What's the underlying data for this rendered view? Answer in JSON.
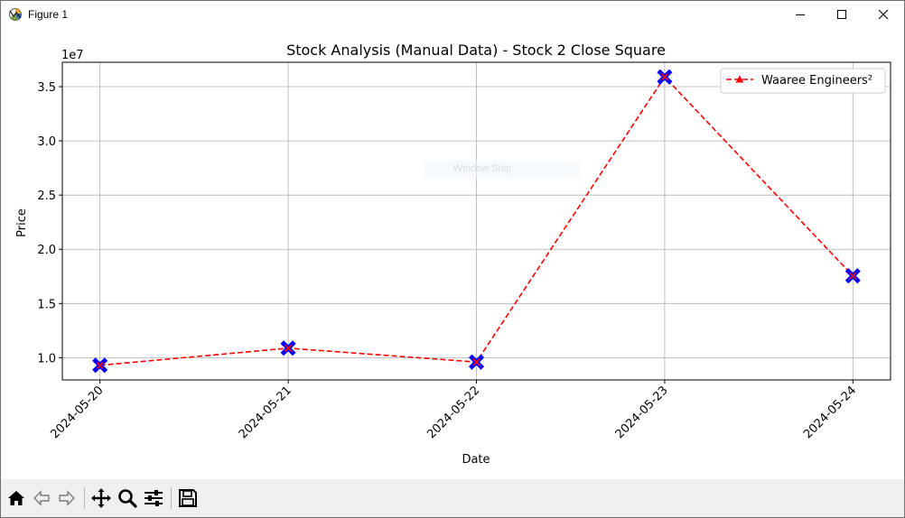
{
  "window": {
    "title": "Figure 1",
    "controls": [
      "minimize-icon",
      "maximize-icon",
      "close-icon"
    ]
  },
  "ghost_overlay": {
    "label": "Window Snip"
  },
  "toolbar": {
    "buttons": [
      "home-icon",
      "back-icon",
      "forward-icon",
      "pan-icon",
      "zoom-icon",
      "configure-subplots-icon",
      "save-icon"
    ]
  },
  "chart_data": {
    "type": "line",
    "title": "Stock Analysis (Manual Data) - Stock 2 Close Square",
    "xlabel": "Date",
    "ylabel": "Price",
    "y_offset_label": "1e7",
    "categories": [
      "2024-05-20",
      "2024-05-21",
      "2024-05-22",
      "2024-05-23",
      "2024-05-24"
    ],
    "series": [
      {
        "name": "Waaree Engineers²",
        "values": [
          9300000,
          10880000,
          9600000,
          35900000,
          17550000
        ],
        "line_color": "#ff0000",
        "line_style": "dashed",
        "marker": "X",
        "marker_face_color": "#0000ff",
        "marker_edge_color": "#ff0000"
      }
    ],
    "yticks": [
      10000000,
      15000000,
      20000000,
      25000000,
      30000000,
      35000000
    ],
    "ytick_labels": [
      "1.0",
      "1.5",
      "2.0",
      "2.5",
      "3.0",
      "3.5"
    ],
    "ylim": [
      7950000,
      37250000
    ],
    "x_padding": 0.2,
    "grid": true,
    "legend_position": "top-right"
  }
}
